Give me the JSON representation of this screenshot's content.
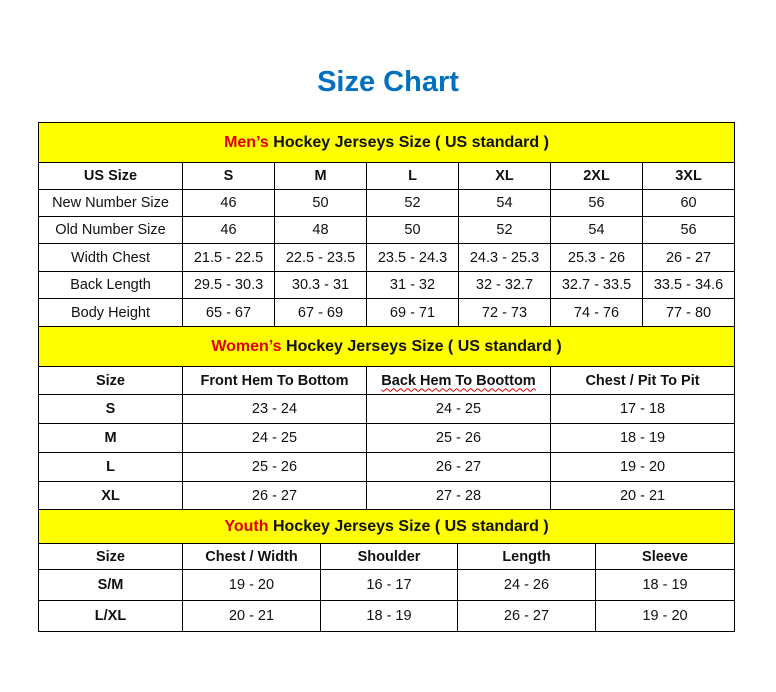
{
  "title": "Size Chart",
  "colors": {
    "title": "#0070C0",
    "header_bg": "#FFFF00",
    "highlight": "#E00000"
  },
  "mens": {
    "header_highlight": "Men’s",
    "header_rest": " Hockey Jerseys Size ( US standard )",
    "columns": [
      "US Size",
      "S",
      "M",
      "L",
      "XL",
      "2XL",
      "3XL"
    ],
    "rows": [
      [
        "New Number Size",
        "46",
        "50",
        "52",
        "54",
        "56",
        "60"
      ],
      [
        "Old Number Size",
        "46",
        "48",
        "50",
        "52",
        "54",
        "56"
      ],
      [
        "Width Chest",
        "21.5 - 22.5",
        "22.5 - 23.5",
        "23.5 - 24.3",
        "24.3 - 25.3",
        "25.3 - 26",
        "26 - 27"
      ],
      [
        "Back Length",
        "29.5 - 30.3",
        "30.3 - 31",
        "31 - 32",
        "32 - 32.7",
        "32.7 - 33.5",
        "33.5 - 34.6"
      ],
      [
        "Body Height",
        "65 - 67",
        "67 - 69",
        "69 - 71",
        "72 - 73",
        "74 - 76",
        "77 - 80"
      ]
    ]
  },
  "womens": {
    "header_highlight": "Women’s",
    "header_rest": " Hockey Jerseys Size ( US standard )",
    "columns": [
      "Size",
      "Front Hem To Bottom",
      "Back Hem To Boottom",
      "Chest / Pit To Pit"
    ],
    "rows": [
      [
        "S",
        "23 - 24",
        "24 - 25",
        "17 - 18"
      ],
      [
        "M",
        "24 - 25",
        "25 - 26",
        "18 - 19"
      ],
      [
        "L",
        "25 - 26",
        "26 - 27",
        "19 - 20"
      ],
      [
        "XL",
        "26 - 27",
        "27 - 28",
        "20 - 21"
      ]
    ]
  },
  "youth": {
    "header_highlight": "Youth",
    "header_rest": " Hockey Jerseys Size ( US standard )",
    "columns": [
      "Size",
      "Chest / Width",
      "Shoulder",
      "Length",
      "Sleeve"
    ],
    "rows": [
      [
        "S/M",
        "19 - 20",
        "16 - 17",
        "24 - 26",
        "18 - 19"
      ],
      [
        "L/XL",
        "20 - 21",
        "18 - 19",
        "26 - 27",
        "19 - 20"
      ]
    ]
  }
}
